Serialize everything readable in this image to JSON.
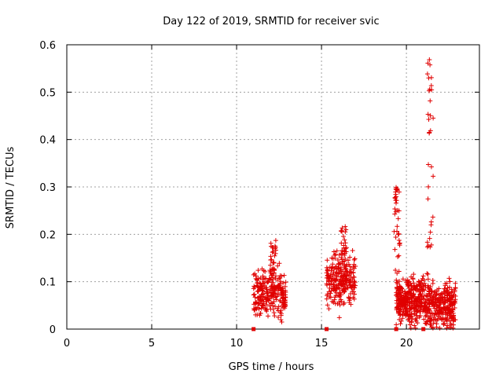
{
  "chart_data": {
    "type": "scatter",
    "title": "Day 122 of 2019, SRMTID for receiver svic",
    "xlabel": "GPS time / hours",
    "ylabel": "SRMTID / TECUs",
    "xlim": [
      0,
      24.3
    ],
    "ylim": [
      0,
      0.6
    ],
    "xticks": [
      0,
      5,
      10,
      15,
      20
    ],
    "yticks": [
      0,
      0.1,
      0.2,
      0.3,
      0.4,
      0.5,
      0.6
    ],
    "xtick_labels": [
      "0",
      "5",
      "10",
      "15",
      "20"
    ],
    "ytick_labels": [
      "0",
      "0.1",
      "0.2",
      "0.3",
      "0.4",
      "0.5",
      "0.6"
    ],
    "grid": true,
    "marker": "+",
    "color": "#e00000",
    "series_clusters": [
      {
        "x_range": [
          11.0,
          12.9
        ],
        "y_center": 0.07,
        "y_spread": 0.05,
        "y_max": 0.19,
        "approx_points": 260
      },
      {
        "x_range": [
          15.3,
          17.0
        ],
        "y_center": 0.1,
        "y_spread": 0.06,
        "y_max": 0.22,
        "approx_points": 230
      },
      {
        "x_range": [
          19.4,
          21.0
        ],
        "y_center": 0.06,
        "y_spread": 0.05,
        "y_max": 0.3,
        "approx_points": 330
      },
      {
        "x_range": [
          21.0,
          22.9
        ],
        "y_center": 0.05,
        "y_spread": 0.05,
        "y_max": 0.59,
        "approx_points": 320
      }
    ],
    "x_axis_markers": [
      11.0,
      15.3,
      19.4,
      21.0
    ]
  }
}
